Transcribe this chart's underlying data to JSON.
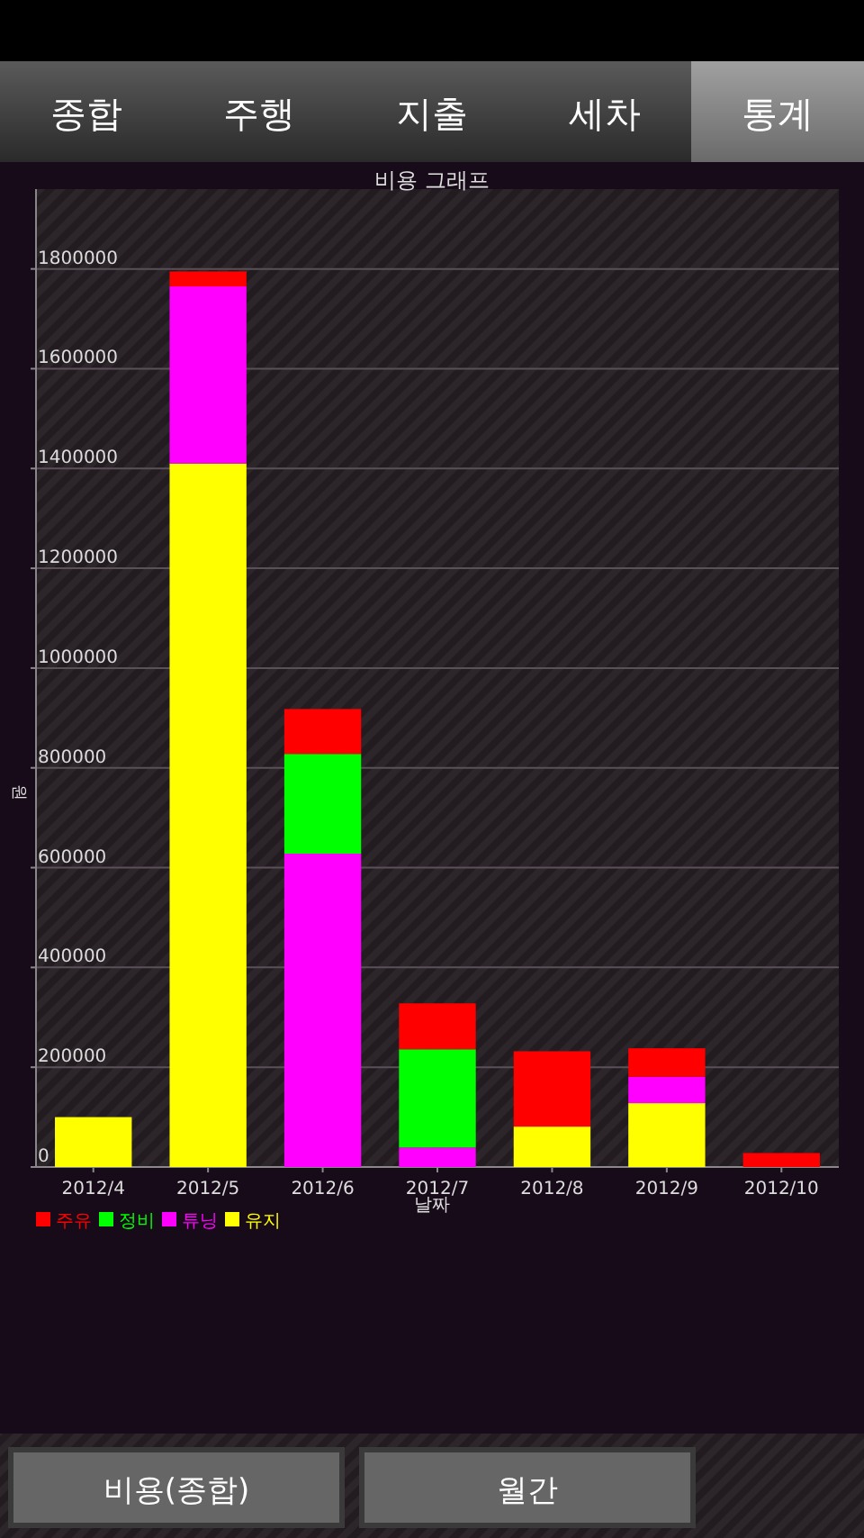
{
  "chart_data": {
    "type": "bar",
    "title": "비용 그래프",
    "xlabel": "날짜",
    "ylabel": "원",
    "categories": [
      "2012/4",
      "2012/5",
      "2012/6",
      "2012/7",
      "2012/8",
      "2012/9",
      "2012/10"
    ],
    "stacked": true,
    "series": [
      {
        "name": "유지",
        "color": "#ffff00",
        "values": [
          100000,
          1410000,
          null,
          null,
          81000,
          128000,
          null
        ]
      },
      {
        "name": "튜닝",
        "color": "#ff00ff",
        "values": [
          null,
          355000,
          628000,
          39000,
          null,
          53000,
          null
        ]
      },
      {
        "name": "정비",
        "color": "#00ff00",
        "values": [
          null,
          null,
          200000,
          197000,
          null,
          null,
          null
        ]
      },
      {
        "name": "주유",
        "color": "#ff0000",
        "values": [
          null,
          30000,
          90000,
          92000,
          151000,
          57000,
          28000
        ]
      }
    ],
    "ylim": [
      0,
      1960000
    ],
    "yticks": [
      0,
      200000,
      400000,
      600000,
      800000,
      1000000,
      1200000,
      1400000,
      1600000,
      1800000
    ],
    "grid": "y",
    "legend": "bottom left",
    "annotations": [
      "종합",
      "주행",
      "지출",
      "세차",
      "통계",
      "비용(종합)",
      "월간"
    ]
  }
}
